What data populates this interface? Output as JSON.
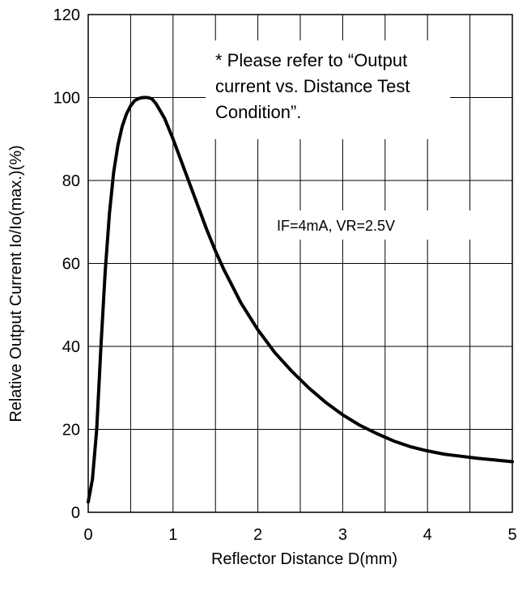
{
  "chart_data": {
    "type": "line",
    "title": "",
    "xlabel": "Reflector Distance D(mm)",
    "ylabel": "Relative Output Current Io/Io(max.)(%)",
    "xlim": [
      0,
      5
    ],
    "ylim": [
      0,
      120
    ],
    "x_ticks": [
      0,
      1,
      2,
      3,
      4,
      5
    ],
    "y_ticks": [
      0,
      20,
      40,
      60,
      80,
      100,
      120
    ],
    "x_tick_labels": [
      "0",
      "1",
      "2",
      "3",
      "4",
      "5"
    ],
    "y_tick_labels": [
      "0",
      "20",
      "40",
      "60",
      "80",
      "100",
      "120"
    ],
    "grid": true,
    "x_grid_step": 0.5,
    "y_grid_step": 20,
    "series": [
      {
        "x": [
          0.0,
          0.05,
          0.1,
          0.15,
          0.2,
          0.25,
          0.3,
          0.35,
          0.4,
          0.45,
          0.5,
          0.55,
          0.6,
          0.65,
          0.7,
          0.75,
          0.8,
          0.9,
          1.0,
          1.1,
          1.2,
          1.3,
          1.4,
          1.5,
          1.6,
          1.8,
          2.0,
          2.2,
          2.4,
          2.6,
          2.8,
          3.0,
          3.2,
          3.4,
          3.6,
          3.8,
          4.0,
          4.2,
          4.4,
          4.6,
          4.8,
          5.0
        ],
        "y": [
          2.5,
          8,
          20,
          40,
          58,
          72,
          82,
          88.5,
          93,
          96,
          98,
          99.3,
          99.8,
          100,
          100,
          99.7,
          98.5,
          95,
          90,
          84.5,
          79,
          73.5,
          68,
          63,
          58.5,
          50.5,
          44,
          38.5,
          34,
          30,
          26.5,
          23.5,
          21,
          19,
          17.2,
          15.8,
          14.8,
          14,
          13.5,
          13,
          12.6,
          12.2
        ],
        "color": "#000000"
      }
    ],
    "annotations": [
      {
        "lines": [
          "* Please refer to “Output",
          "current vs. Distance Test",
          "Condition”."
        ],
        "anchor": "upper-right"
      },
      {
        "lines": [
          "IF=4mA, VR=2.5V"
        ],
        "anchor": "right-middle"
      }
    ]
  }
}
